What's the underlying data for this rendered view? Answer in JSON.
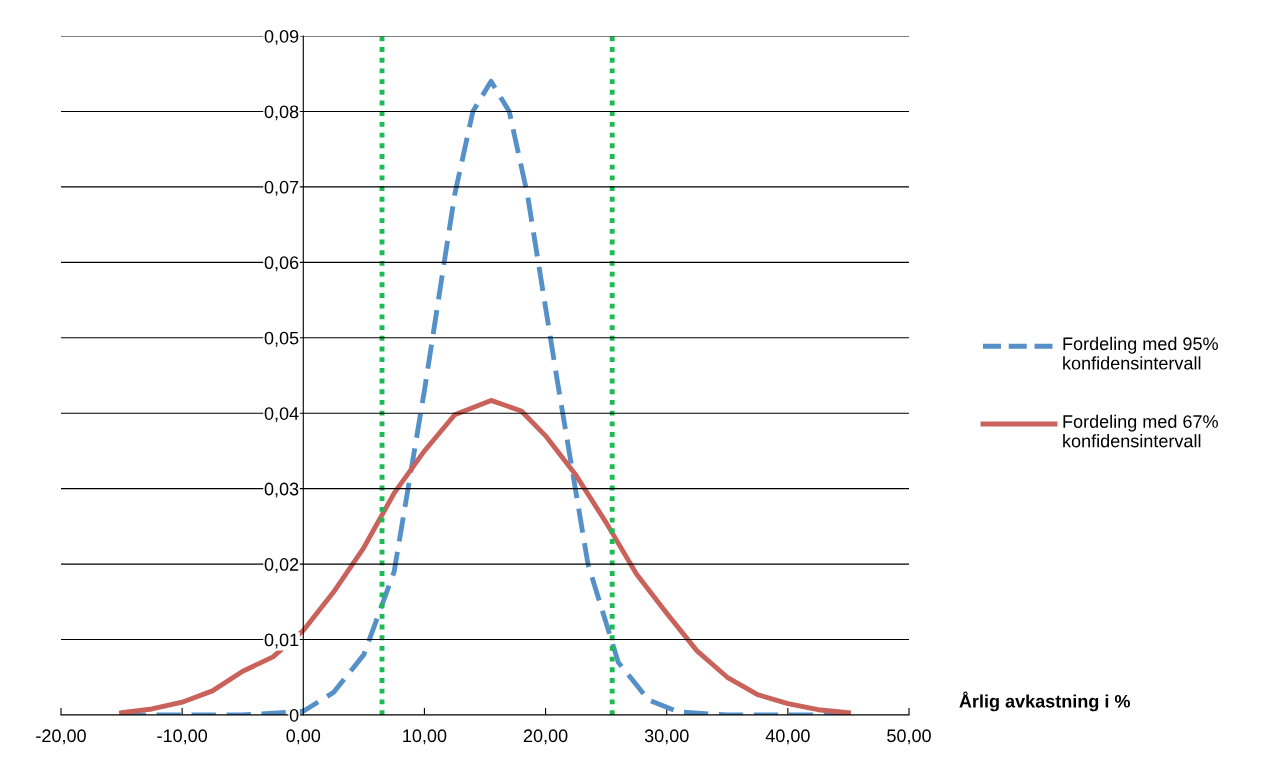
{
  "chart_data": {
    "type": "line",
    "xlabel": "Årlig avkastning i %",
    "xlim": [
      -20,
      50
    ],
    "xticks": [
      {
        "value": -20,
        "label": "-20,00"
      },
      {
        "value": -10,
        "label": "-10,00"
      },
      {
        "value": 0,
        "label": "0,00"
      },
      {
        "value": 10,
        "label": "10,00"
      },
      {
        "value": 20,
        "label": "20,00"
      },
      {
        "value": 30,
        "label": "30,00"
      },
      {
        "value": 40,
        "label": "40,00"
      },
      {
        "value": 50,
        "label": "50,00"
      }
    ],
    "ylim": [
      0,
      0.09
    ],
    "yticks": [
      0,
      {
        "value": 0.01,
        "label": "0,01"
      },
      {
        "value": 0.02,
        "label": "0,02"
      },
      {
        "value": 0.03,
        "label": "0,03"
      },
      {
        "value": 0.04,
        "label": "0,04"
      },
      {
        "value": 0.05,
        "label": "0,05"
      },
      {
        "value": 0.06,
        "label": "0,06"
      },
      {
        "value": 0.07,
        "label": "0,07"
      },
      {
        "value": 0.08,
        "label": "0,08"
      },
      {
        "value": 0.09,
        "label": "0,09"
      }
    ],
    "grid": "y",
    "legend": "right",
    "marker": "none",
    "series": [
      {
        "name": "Fordeling med 95% konfidensintervall",
        "color": "#5591c8",
        "line_style": "dashed",
        "x": [
          -15,
          -10,
          -5,
          0,
          2.5,
          5,
          7.5,
          10,
          12.5,
          14,
          15.5,
          17,
          18.5,
          21,
          23.5,
          26,
          28.5,
          31,
          35,
          40,
          45
        ],
        "values": [
          0,
          0,
          0,
          0.0005,
          0.003,
          0.008,
          0.019,
          0.043,
          0.069,
          0.08,
          0.084,
          0.08,
          0.069,
          0.044,
          0.02,
          0.007,
          0.002,
          0.0004,
          0,
          0,
          0
        ]
      },
      {
        "name": "Fordeling med 67% konfidensintervall",
        "color": "#c9625a",
        "line_style": "solid",
        "x": [
          -15,
          -12.5,
          -10,
          -7.5,
          -5,
          -2.5,
          0,
          2.5,
          5,
          7.5,
          10,
          12.5,
          15.5,
          18,
          20,
          22.5,
          25,
          27.5,
          30,
          32.5,
          35,
          37.5,
          40,
          42.5,
          45
        ],
        "values": [
          0.0003,
          0.0008,
          0.0017,
          0.0032,
          0.0058,
          0.0077,
          0.0112,
          0.0163,
          0.0222,
          0.0294,
          0.035,
          0.0398,
          0.0417,
          0.0403,
          0.037,
          0.0318,
          0.0255,
          0.0187,
          0.0135,
          0.0085,
          0.005,
          0.0027,
          0.0015,
          0.0007,
          0.0003
        ]
      }
    ],
    "ref_lines": [
      {
        "axis": "x",
        "value": 6.5,
        "color": "#1fb955",
        "line_style": "dotted"
      },
      {
        "axis": "x",
        "value": 25.5,
        "color": "#1fb955",
        "line_style": "dotted"
      }
    ]
  }
}
